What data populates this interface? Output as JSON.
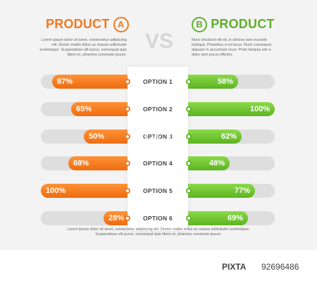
{
  "header": {
    "product_a": "PRODUCT",
    "product_a_letter": "A",
    "product_b": "PRODUCT",
    "product_b_letter": "B",
    "vs": "VS",
    "desc_a": "Lorem ipsum dolor sit amet, consectetur adipiscing elit. Donec mattis tellus ac massa sollicitudin scelerisque. Suspendisse elit purus, consequat quis libero in, pharetra commodo ipsum.",
    "desc_b": "Nunc tincidunt elit sit, in ultrices sem mcosite tristique. Phasellus a mi lacus. Nunc consequat aliquam in accumsan risus. Proin tempus sim a dolor sem purus efficitur."
  },
  "options": [
    {
      "label": "OPTION 1",
      "a": "87%",
      "b": "58%",
      "a_value": 0.87,
      "b_value": 0.58
    },
    {
      "label": "OPTION 2",
      "a": "65%",
      "b": "100%",
      "a_value": 0.65,
      "b_value": 1.0
    },
    {
      "label": "OPTION 3",
      "a": "50%",
      "b": "62%",
      "a_value": 0.5,
      "b_value": 0.62
    },
    {
      "label": "OPTION 4",
      "a": "68%",
      "b": "48%",
      "a_value": 0.68,
      "b_value": 0.48
    },
    {
      "label": "OPTION 5",
      "a": "100%",
      "b": "77%",
      "a_value": 1.0,
      "b_value": 0.77
    },
    {
      "label": "OPTION 6",
      "a": "28%",
      "b": "69%",
      "a_value": 0.28,
      "b_value": 0.69
    }
  ],
  "footer": {
    "text": "Lorem ipsum dolor sit amet, consectetur adipiscing elit. Donec mattis tellus ac massa sollicitudin scelerisque. Suspendisse elit purus, consequat quis libero in, pharetra commodo ipsum."
  },
  "watermark": "FIXTA",
  "credit": {
    "logo": "PIXTA",
    "id": "92696486"
  },
  "colors": {
    "accent_a": "#f07a22",
    "accent_b": "#5fb02a",
    "track": "#dedede"
  }
}
